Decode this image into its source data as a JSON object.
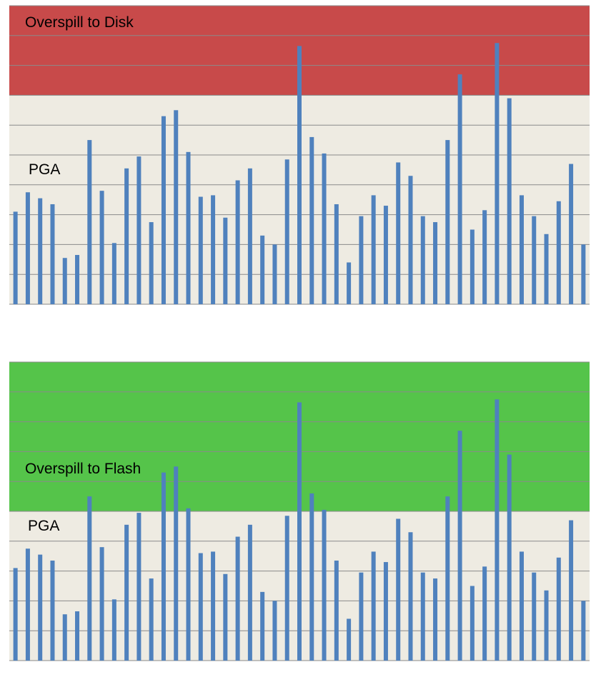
{
  "chart_data": [
    {
      "type": "bar",
      "zones": [
        {
          "label": "Overspill to Disk",
          "from": 7,
          "to": 10,
          "color": "#c84a4a"
        },
        {
          "label": "PGA",
          "from": 0,
          "to": 7,
          "color": "#eeebe2"
        }
      ],
      "grid": true,
      "ylim": [
        0,
        10
      ],
      "bar_color": "#4f81bd",
      "values": [
        3.1,
        3.75,
        3.55,
        3.35,
        1.55,
        1.65,
        5.5,
        3.8,
        2.05,
        4.55,
        4.95,
        2.75,
        6.3,
        6.5,
        5.1,
        3.6,
        3.65,
        2.9,
        4.15,
        4.55,
        2.3,
        2.0,
        4.85,
        8.65,
        5.6,
        5.05,
        3.35,
        1.4,
        2.95,
        3.65,
        3.3,
        4.75,
        4.3,
        2.95,
        2.75,
        5.5,
        7.7,
        2.5,
        3.15,
        8.75,
        6.9,
        3.65,
        2.95,
        2.35,
        3.45,
        4.7,
        2.0
      ]
    },
    {
      "type": "bar",
      "zones": [
        {
          "label": "Overspill to Flash",
          "from": 5,
          "to": 10,
          "color": "#55c44a"
        },
        {
          "label": "PGA",
          "from": 0,
          "to": 5,
          "color": "#eeebe2"
        }
      ],
      "grid": true,
      "ylim": [
        0,
        10
      ],
      "bar_color": "#4f81bd",
      "values": [
        3.1,
        3.75,
        3.55,
        3.35,
        1.55,
        1.65,
        5.5,
        3.8,
        2.05,
        4.55,
        4.95,
        2.75,
        6.3,
        6.5,
        5.1,
        3.6,
        3.65,
        2.9,
        4.15,
        4.55,
        2.3,
        2.0,
        4.85,
        8.65,
        5.6,
        5.05,
        3.35,
        1.4,
        2.95,
        3.65,
        3.3,
        4.75,
        4.3,
        2.95,
        2.75,
        5.5,
        7.7,
        2.5,
        3.15,
        8.75,
        6.9,
        3.65,
        2.95,
        2.35,
        3.45,
        4.7,
        2.0
      ]
    }
  ]
}
